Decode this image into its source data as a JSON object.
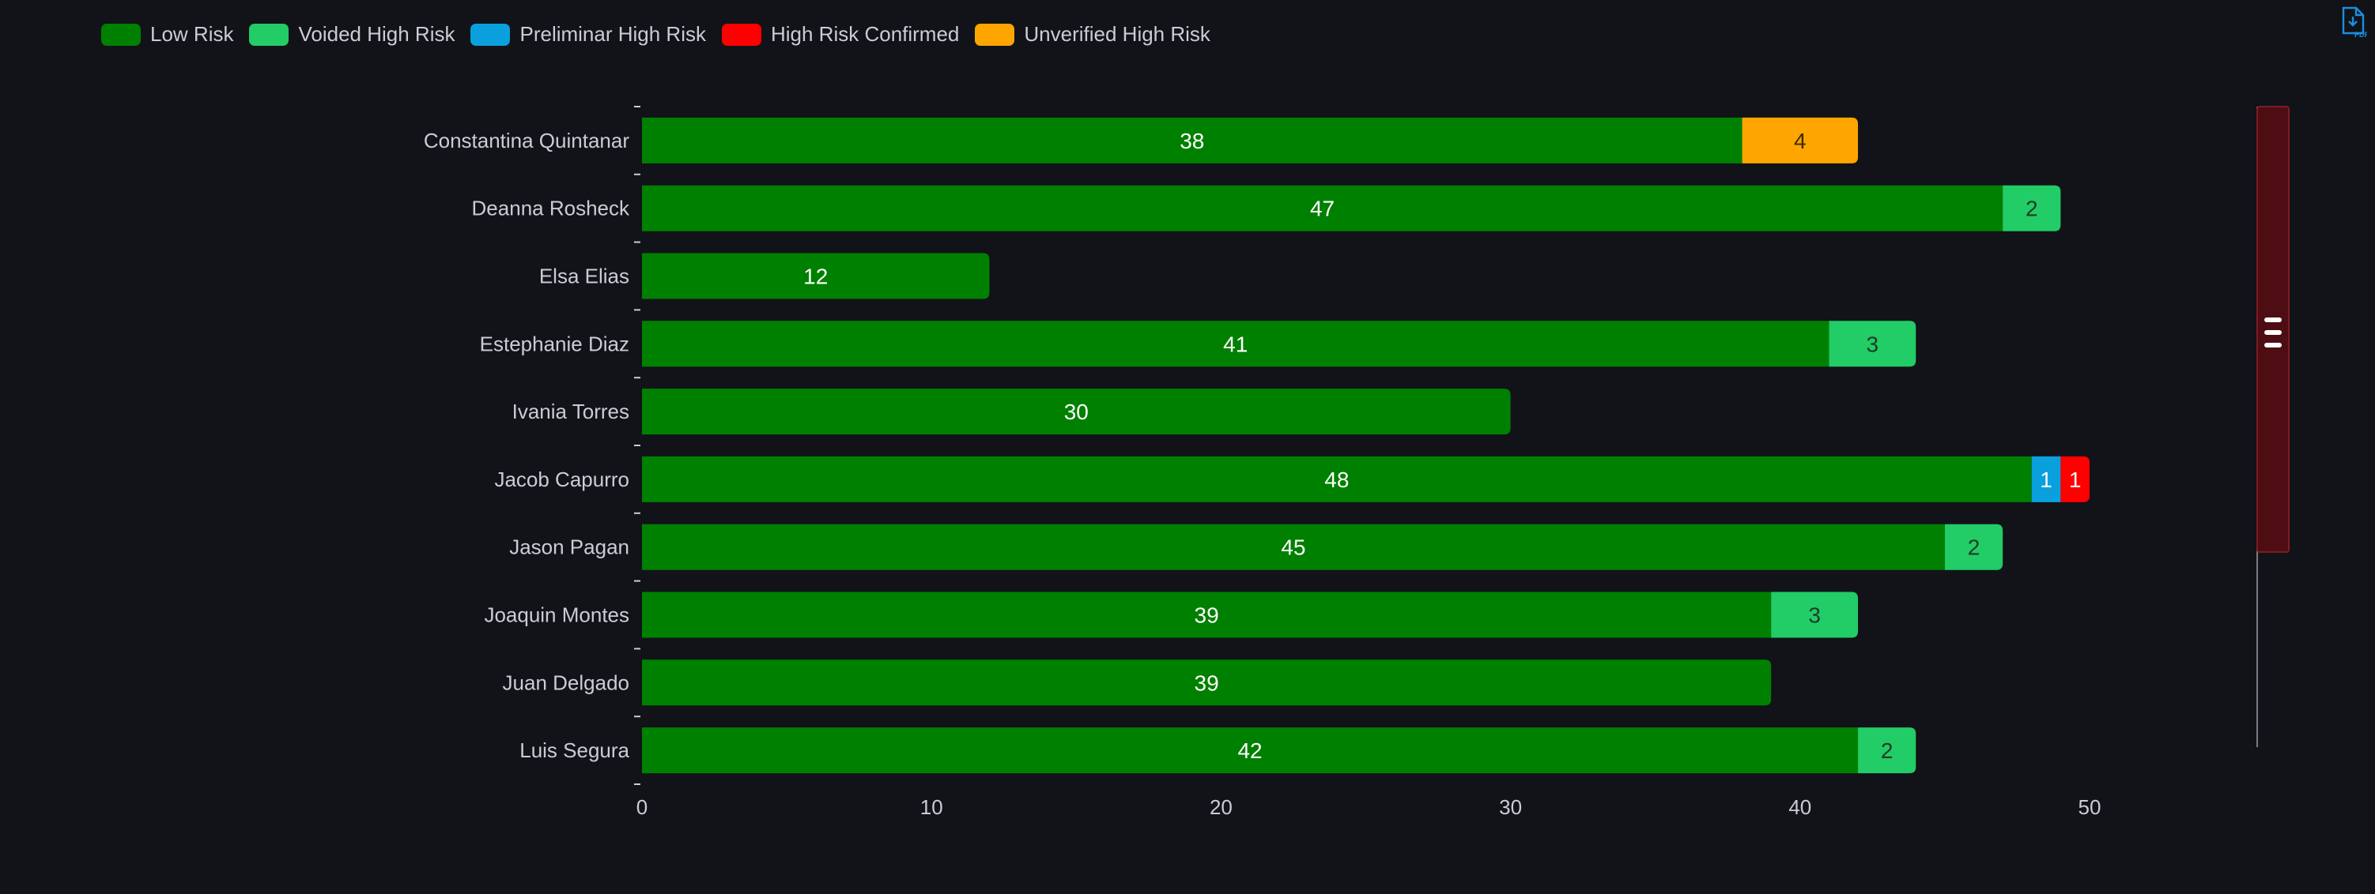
{
  "pdf_button": {
    "icon": "pdf-download-icon",
    "label": "PDF"
  },
  "chart_data": {
    "type": "bar",
    "orientation": "horizontal",
    "stacked": true,
    "categories": [
      "Constantina Quintanar",
      "Deanna Rosheck",
      "Elsa Elias",
      "Estephanie Diaz",
      "Ivania Torres",
      "Jacob Capurro",
      "Jason Pagan",
      "Joaquin Montes",
      "Juan Delgado",
      "Luis Segura"
    ],
    "series": [
      {
        "name": "Low Risk",
        "color": "#008000",
        "label_color": "#ffffff",
        "values": [
          38,
          47,
          12,
          41,
          30,
          48,
          45,
          39,
          39,
          42
        ]
      },
      {
        "name": "Voided High Risk",
        "color": "#22cc66",
        "label_color": "#1d3b27",
        "values": [
          0,
          2,
          0,
          3,
          0,
          0,
          2,
          3,
          0,
          2
        ]
      },
      {
        "name": "Preliminar High Risk",
        "color": "#0aa0de",
        "label_color": "#ffffff",
        "values": [
          0,
          0,
          0,
          0,
          0,
          1,
          0,
          0,
          0,
          0
        ]
      },
      {
        "name": "High Risk Confirmed",
        "color": "#ff0000",
        "label_color": "#ffffff",
        "values": [
          0,
          0,
          0,
          0,
          0,
          1,
          0,
          0,
          0,
          0
        ]
      },
      {
        "name": "Unverified High Risk",
        "color": "#ffa500",
        "label_color": "#3a2a00",
        "values": [
          4,
          0,
          0,
          0,
          0,
          0,
          0,
          0,
          0,
          0
        ]
      }
    ],
    "xlim": [
      0,
      50
    ],
    "xticks": [
      "0",
      "10",
      "20",
      "30",
      "40",
      "50"
    ],
    "xlabel": "",
    "ylabel": "",
    "title": "",
    "grid": false,
    "legend_position": "top-left",
    "scrollbar": {
      "track_color": "#4e0d12",
      "thumb_handle_color": "#ffffff"
    },
    "background": "#111318",
    "text_color": "#c9cdd4"
  }
}
